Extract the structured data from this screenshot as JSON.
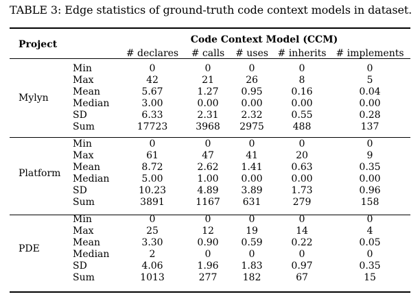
{
  "caption": "TABLE 3: Edge statistics of ground-truth code context models in dataset.",
  "header": {
    "project_label": "Project",
    "group_label": "Code Context Model (CCM)",
    "columns": [
      "# declares",
      "# calls",
      "# uses",
      "# inherits",
      "# implements"
    ]
  },
  "groups": [
    {
      "project": "Mylyn",
      "rows": [
        {
          "stat": "Min",
          "values": [
            "0",
            "0",
            "0",
            "0",
            "0"
          ]
        },
        {
          "stat": "Max",
          "values": [
            "42",
            "21",
            "26",
            "8",
            "5"
          ]
        },
        {
          "stat": "Mean",
          "values": [
            "5.67",
            "1.27",
            "0.95",
            "0.16",
            "0.04"
          ]
        },
        {
          "stat": "Median",
          "values": [
            "3.00",
            "0.00",
            "0.00",
            "0.00",
            "0.00"
          ]
        },
        {
          "stat": "SD",
          "values": [
            "6.33",
            "2.31",
            "2.32",
            "0.55",
            "0.28"
          ]
        },
        {
          "stat": "Sum",
          "values": [
            "17723",
            "3968",
            "2975",
            "488",
            "137"
          ]
        }
      ]
    },
    {
      "project": "Platform",
      "rows": [
        {
          "stat": "Min",
          "values": [
            "0",
            "0",
            "0",
            "0",
            "0"
          ]
        },
        {
          "stat": "Max",
          "values": [
            "61",
            "47",
            "41",
            "20",
            "9"
          ]
        },
        {
          "stat": "Mean",
          "values": [
            "8.72",
            "2.62",
            "1.41",
            "0.63",
            "0.35"
          ]
        },
        {
          "stat": "Median",
          "values": [
            "5.00",
            "1.00",
            "0.00",
            "0.00",
            "0.00"
          ]
        },
        {
          "stat": "SD",
          "values": [
            "10.23",
            "4.89",
            "3.89",
            "1.73",
            "0.96"
          ]
        },
        {
          "stat": "Sum",
          "values": [
            "3891",
            "1167",
            "631",
            "279",
            "158"
          ]
        }
      ]
    },
    {
      "project": "PDE",
      "rows": [
        {
          "stat": "Min",
          "values": [
            "0",
            "0",
            "0",
            "0",
            "0"
          ]
        },
        {
          "stat": "Max",
          "values": [
            "25",
            "12",
            "19",
            "14",
            "4"
          ]
        },
        {
          "stat": "Mean",
          "values": [
            "3.30",
            "0.90",
            "0.59",
            "0.22",
            "0.05"
          ]
        },
        {
          "stat": "Median",
          "values": [
            "2",
            "0",
            "0",
            "0",
            "0"
          ]
        },
        {
          "stat": "SD",
          "values": [
            "4.06",
            "1.96",
            "1.83",
            "0.97",
            "0.35"
          ]
        },
        {
          "stat": "Sum",
          "values": [
            "1013",
            "277",
            "182",
            "67",
            "15"
          ]
        }
      ]
    }
  ]
}
